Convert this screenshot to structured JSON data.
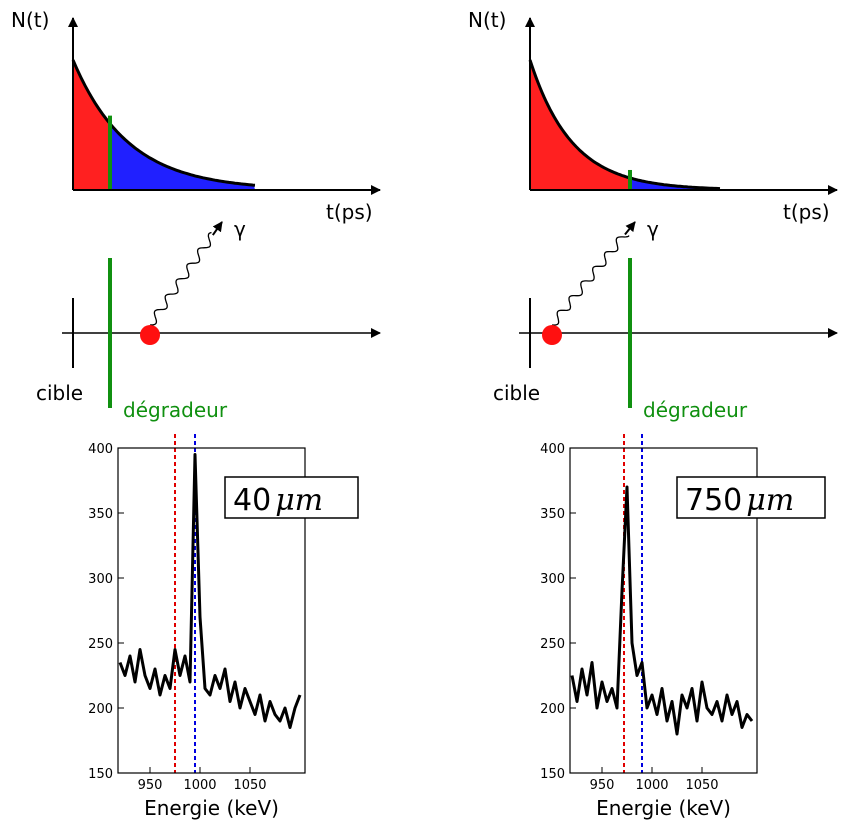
{
  "panels": [
    {
      "axis_y_label": "N(t)",
      "axis_x_label": "t(ps)",
      "gamma": "γ",
      "target": "cible",
      "degrader": "dégradeur",
      "thickness": "40",
      "unit": "μm",
      "spectrum": {
        "type": "line",
        "x_label": "Energie (keV)",
        "xlim": [
          918,
          1105
        ],
        "ylim": [
          150,
          400
        ],
        "xticks": [
          950,
          1000,
          1050
        ],
        "yticks": [
          150,
          200,
          250,
          300,
          350,
          400
        ],
        "x": [
          920,
          925,
          930,
          935,
          940,
          945,
          950,
          955,
          960,
          965,
          970,
          975,
          980,
          985,
          990,
          995,
          1000,
          1005,
          1010,
          1015,
          1020,
          1025,
          1030,
          1035,
          1040,
          1045,
          1050,
          1055,
          1060,
          1065,
          1070,
          1075,
          1080,
          1085,
          1090,
          1095,
          1100
        ],
        "values": [
          235,
          225,
          240,
          220,
          245,
          225,
          215,
          230,
          210,
          225,
          215,
          245,
          225,
          240,
          220,
          395,
          270,
          215,
          210,
          225,
          215,
          230,
          205,
          220,
          200,
          215,
          205,
          195,
          210,
          190,
          205,
          195,
          190,
          200,
          185,
          200,
          210
        ],
        "markers": [
          {
            "color": "#e00000",
            "x": 975
          },
          {
            "color": "#0000e0",
            "x": 995
          }
        ]
      }
    },
    {
      "axis_y_label": "N(t)",
      "axis_x_label": "t(ps)",
      "gamma": "γ",
      "target": "cible",
      "degrader": "dégradeur",
      "thickness": "750",
      "unit": "μm",
      "spectrum": {
        "type": "line",
        "x_label": "Energie (keV)",
        "xlim": [
          918,
          1105
        ],
        "ylim": [
          150,
          400
        ],
        "xticks": [
          950,
          1000,
          1050
        ],
        "yticks": [
          150,
          200,
          250,
          300,
          350,
          400
        ],
        "x": [
          920,
          925,
          930,
          935,
          940,
          945,
          950,
          955,
          960,
          965,
          970,
          975,
          980,
          985,
          990,
          995,
          1000,
          1005,
          1010,
          1015,
          1020,
          1025,
          1030,
          1035,
          1040,
          1045,
          1050,
          1055,
          1060,
          1065,
          1070,
          1075,
          1080,
          1085,
          1090,
          1095,
          1100
        ],
        "values": [
          225,
          205,
          230,
          210,
          235,
          200,
          220,
          205,
          215,
          200,
          290,
          370,
          250,
          225,
          235,
          200,
          210,
          195,
          215,
          190,
          205,
          180,
          210,
          200,
          215,
          190,
          220,
          200,
          195,
          205,
          190,
          210,
          195,
          205,
          185,
          195,
          190
        ],
        "markers": [
          {
            "color": "#e00000",
            "x": 972
          },
          {
            "color": "#0000e0",
            "x": 990
          }
        ]
      }
    }
  ]
}
